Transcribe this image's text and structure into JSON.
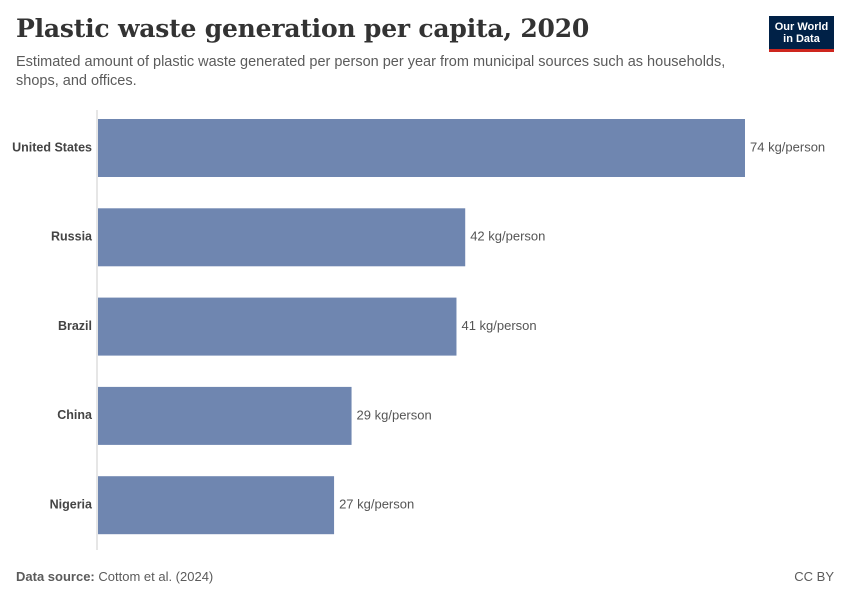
{
  "title": "Plastic waste generation per capita, 2020",
  "subtitle": "Estimated amount of plastic waste generated per person per year from municipal sources such as households, shops, and offices.",
  "logo": {
    "line1": "Our World",
    "line2": "in Data"
  },
  "footer": {
    "source_label": "Data source:",
    "source_value": "Cottom et al. (2024)",
    "license": "CC BY"
  },
  "colors": {
    "bar": "#6f86b0",
    "axis": "#cccccc",
    "label": "#555555",
    "category": "#444444"
  },
  "chart_data": {
    "type": "bar",
    "orientation": "horizontal",
    "categories": [
      "United States",
      "Russia",
      "Brazil",
      "China",
      "Nigeria"
    ],
    "values": [
      74,
      42,
      41,
      29,
      27
    ],
    "value_labels": [
      "74 kg/person",
      "42 kg/person",
      "41 kg/person",
      "29 kg/person",
      "27 kg/person"
    ],
    "unit": "kg/person",
    "xlim": [
      0,
      74
    ],
    "grid": false,
    "legend": "none"
  }
}
